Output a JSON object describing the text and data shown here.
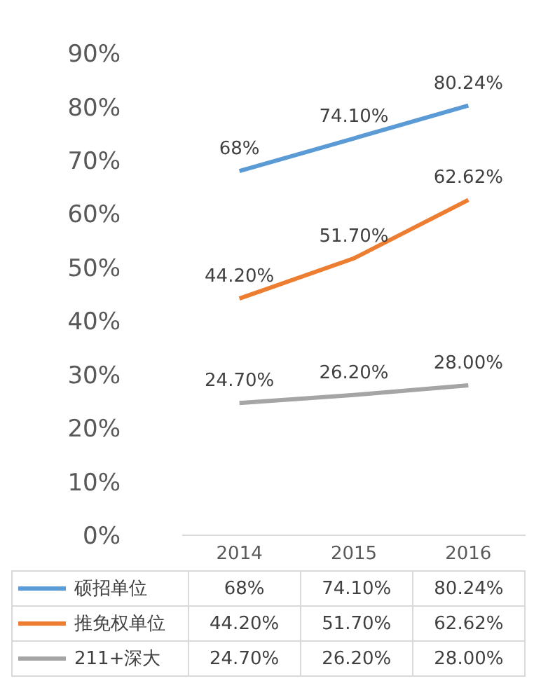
{
  "chart_data": {
    "type": "line",
    "categories": [
      "2014",
      "2015",
      "2016"
    ],
    "series": [
      {
        "name": "硕招单位",
        "color": "#5b9bd5",
        "values": [
          68,
          74.1,
          80.24
        ],
        "value_labels": [
          "68%",
          "74.10%",
          "80.24%"
        ]
      },
      {
        "name": "推免权单位",
        "color": "#ed7d31",
        "values": [
          44.2,
          51.7,
          62.62
        ],
        "value_labels": [
          "44.20%",
          "51.70%",
          "62.62%"
        ]
      },
      {
        "name": "211+深大",
        "color": "#a5a5a5",
        "values": [
          24.7,
          26.2,
          28
        ],
        "value_labels": [
          "24.70%",
          "26.20%",
          "28.00%"
        ]
      }
    ],
    "ylim": [
      0,
      90
    ],
    "yticks": [
      {
        "value": 0,
        "label": "0%"
      },
      {
        "value": 10,
        "label": "10%"
      },
      {
        "value": 20,
        "label": "20%"
      },
      {
        "value": 30,
        "label": "30%"
      },
      {
        "value": 40,
        "label": "40%"
      },
      {
        "value": 50,
        "label": "50%"
      },
      {
        "value": 60,
        "label": "60%"
      },
      {
        "value": 70,
        "label": "70%"
      },
      {
        "value": 80,
        "label": "80%"
      },
      {
        "value": 90,
        "label": "90%"
      }
    ],
    "grid": false,
    "legend": "bottom",
    "marker": "none",
    "line_style": "solid"
  }
}
